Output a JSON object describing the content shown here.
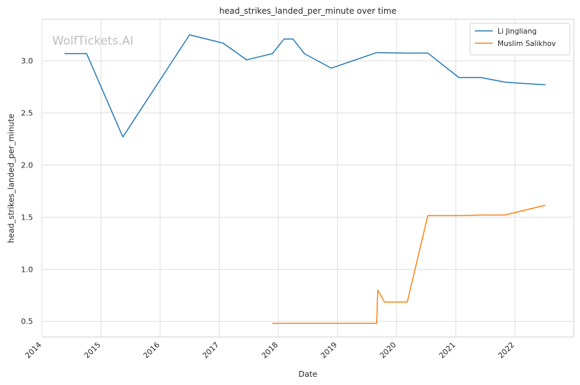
{
  "chart_data": {
    "type": "line",
    "title": "head_strikes_landed_per_minute over time",
    "xlabel": "Date",
    "ylabel": "head_strikes_landed_per_minute",
    "xlim": [
      "2014-01-01",
      "2022-12-31"
    ],
    "ylim": [
      0.35,
      3.4
    ],
    "x_ticks": [
      "2014",
      "2015",
      "2016",
      "2017",
      "2018",
      "2019",
      "2020",
      "2021",
      "2022"
    ],
    "y_ticks": [
      "0.5",
      "1.0",
      "1.5",
      "2.0",
      "2.5",
      "3.0"
    ],
    "grid": true,
    "legend_position": "top-right",
    "watermark": "WolfTickets.AI",
    "series": [
      {
        "name": "Li Jingliang",
        "color": "#1f77b4",
        "points": [
          [
            "2014-05-20",
            3.07
          ],
          [
            "2014-10-04",
            3.07
          ],
          [
            "2015-05-16",
            2.27
          ],
          [
            "2016-07-01",
            3.25
          ],
          [
            "2017-01-24",
            3.17
          ],
          [
            "2017-06-19",
            3.01
          ],
          [
            "2017-11-25",
            3.07
          ],
          [
            "2018-02-05",
            3.21
          ],
          [
            "2018-04-01",
            3.21
          ],
          [
            "2018-06-10",
            3.07
          ],
          [
            "2018-11-24",
            2.93
          ],
          [
            "2019-08-31",
            3.08
          ],
          [
            "2020-02-20",
            3.075
          ],
          [
            "2020-07-12",
            3.075
          ],
          [
            "2021-01-20",
            2.84
          ],
          [
            "2021-06-05",
            2.84
          ],
          [
            "2021-11-06",
            2.795
          ],
          [
            "2022-07-09",
            2.77
          ]
        ]
      },
      {
        "name": "Muslim Salikhov",
        "color": "#ff7f0e",
        "points": [
          [
            "2017-11-25",
            0.48
          ],
          [
            "2019-08-31",
            0.48
          ],
          [
            "2019-09-07",
            0.8
          ],
          [
            "2019-10-18",
            0.685
          ],
          [
            "2020-03-07",
            0.685
          ],
          [
            "2020-07-12",
            1.515
          ],
          [
            "2021-01-20",
            1.515
          ],
          [
            "2021-06-05",
            1.52
          ],
          [
            "2021-10-30",
            1.52
          ],
          [
            "2022-07-09",
            1.615
          ]
        ]
      }
    ]
  }
}
